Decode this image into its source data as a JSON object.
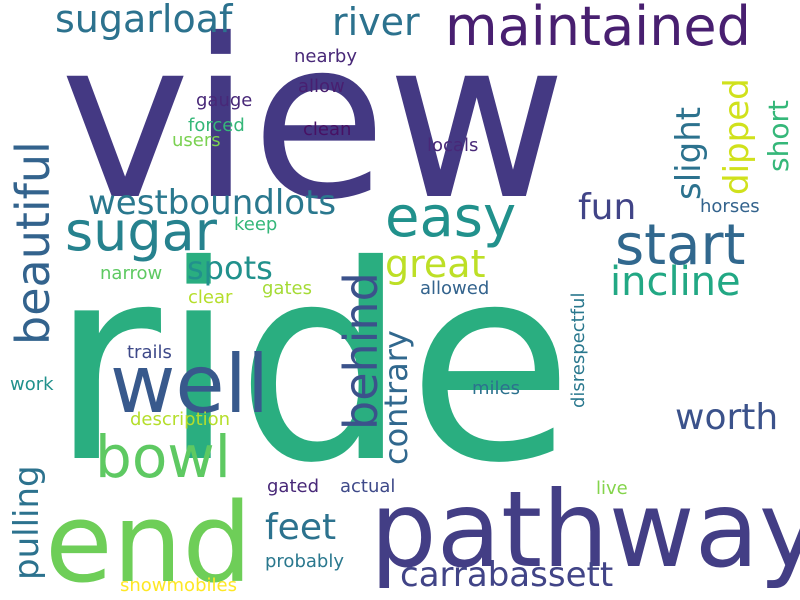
{
  "words": [
    {
      "text": "view",
      "color": "#443983"
    },
    {
      "text": "ride",
      "color": "#2aae80"
    },
    {
      "text": "end",
      "color": "#6ece58"
    },
    {
      "text": "pathway",
      "color": "#433e85"
    },
    {
      "text": "maintained",
      "color": "#481f70"
    },
    {
      "text": "well",
      "color": "#38598c"
    },
    {
      "text": "bowl",
      "color": "#5ec962"
    },
    {
      "text": "easy",
      "color": "#21918c"
    },
    {
      "text": "start",
      "color": "#31688e"
    },
    {
      "text": "sugar",
      "color": "#26828e"
    },
    {
      "text": "beautiful",
      "color": "#33638d"
    },
    {
      "text": "behind",
      "color": "#3b528b"
    },
    {
      "text": "river",
      "color": "#2c728e"
    },
    {
      "text": "sugarloaf",
      "color": "#2c728e"
    },
    {
      "text": "incline",
      "color": "#22a884"
    },
    {
      "text": "westboundlots",
      "color": "#2a788e"
    },
    {
      "text": "great",
      "color": "#bddf26"
    },
    {
      "text": "fun",
      "color": "#414487"
    },
    {
      "text": "spots",
      "color": "#21918c"
    },
    {
      "text": "worth",
      "color": "#3b528b"
    },
    {
      "text": "feet",
      "color": "#2c728e"
    },
    {
      "text": "carrabassett",
      "color": "#414487"
    },
    {
      "text": "contrary",
      "color": "#31688e"
    },
    {
      "text": "pulling",
      "color": "#2c728e"
    },
    {
      "text": "slight",
      "color": "#2c728e"
    },
    {
      "text": "dipped",
      "color": "#d0e11c"
    },
    {
      "text": "short",
      "color": "#35b779"
    },
    {
      "text": "nearby",
      "color": "#482878"
    },
    {
      "text": "allow",
      "color": "#481f70"
    },
    {
      "text": "clean",
      "color": "#471164"
    },
    {
      "text": "gauge",
      "color": "#482878"
    },
    {
      "text": "forced",
      "color": "#35b779"
    },
    {
      "text": "users",
      "color": "#7ad151"
    },
    {
      "text": "locals",
      "color": "#482878"
    },
    {
      "text": "horses",
      "color": "#33638d"
    },
    {
      "text": "keep",
      "color": "#35b779"
    },
    {
      "text": "narrow",
      "color": "#5ec962"
    },
    {
      "text": "clear",
      "color": "#b5de2b"
    },
    {
      "text": "gates",
      "color": "#a5db36"
    },
    {
      "text": "allowed",
      "color": "#33638d"
    },
    {
      "text": "disrespectful",
      "color": "#2a788e"
    },
    {
      "text": "trails",
      "color": "#3e4989"
    },
    {
      "text": "work",
      "color": "#21918c"
    },
    {
      "text": "miles",
      "color": "#2c728e"
    },
    {
      "text": "description",
      "color": "#b5de2b"
    },
    {
      "text": "gated",
      "color": "#482878"
    },
    {
      "text": "actual",
      "color": "#3e4989"
    },
    {
      "text": "live",
      "color": "#84d44b"
    },
    {
      "text": "probably",
      "color": "#2a788e"
    },
    {
      "text": "snowmobiles",
      "color": "#fde725"
    }
  ]
}
